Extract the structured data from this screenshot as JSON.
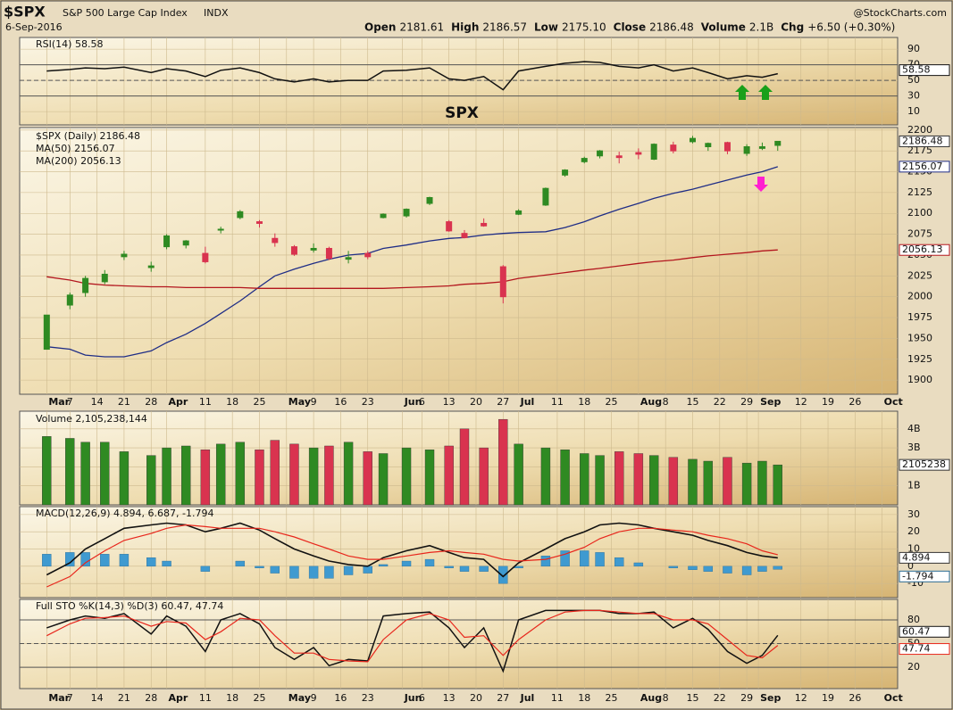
{
  "header": {
    "symbol": "$SPX",
    "name": "S&P 500 Large Cap Index",
    "exchange": "INDX",
    "source": "@StockCharts.com",
    "date": "6-Sep-2016",
    "quote": [
      {
        "label": "Open",
        "value": "2181.61"
      },
      {
        "label": "High",
        "value": "2186.57"
      },
      {
        "label": "Low",
        "value": "2175.10"
      },
      {
        "label": "Close",
        "value": "2186.48"
      },
      {
        "label": "Volume",
        "value": "2.1B"
      },
      {
        "label": "Chg",
        "value": "+6.50 (+0.30%)"
      }
    ]
  },
  "annotation": {
    "text": "SPX",
    "color": "#ff1fd0"
  },
  "chart_data": {
    "type": "stock",
    "x": [
      "2016-03-01",
      "2016-03-07",
      "2016-03-11",
      "2016-03-16",
      "2016-03-21",
      "2016-03-28",
      "2016-04-01",
      "2016-04-06",
      "2016-04-11",
      "2016-04-15",
      "2016-04-20",
      "2016-04-25",
      "2016-04-29",
      "2016-05-04",
      "2016-05-09",
      "2016-05-13",
      "2016-05-18",
      "2016-05-23",
      "2016-05-27",
      "2016-06-02",
      "2016-06-08",
      "2016-06-13",
      "2016-06-17",
      "2016-06-22",
      "2016-06-27",
      "2016-07-01",
      "2016-07-08",
      "2016-07-13",
      "2016-07-18",
      "2016-07-22",
      "2016-07-27",
      "2016-08-01",
      "2016-08-05",
      "2016-08-10",
      "2016-08-15",
      "2016-08-19",
      "2016-08-24",
      "2016-08-29",
      "2016-09-02",
      "2016-09-06"
    ],
    "xlim": [
      "2016-02-23",
      "2016-10-07"
    ],
    "xticks": [
      {
        "value": "2016-03-01",
        "label": "Mar"
      },
      {
        "value": "2016-03-07",
        "label": "7"
      },
      {
        "value": "2016-03-14",
        "label": "14"
      },
      {
        "value": "2016-03-21",
        "label": "21"
      },
      {
        "value": "2016-03-28",
        "label": "28"
      },
      {
        "value": "2016-04-01",
        "label": "Apr"
      },
      {
        "value": "2016-04-11",
        "label": "11"
      },
      {
        "value": "2016-04-18",
        "label": "18"
      },
      {
        "value": "2016-04-25",
        "label": "25"
      },
      {
        "value": "2016-05-02",
        "label": "May"
      },
      {
        "value": "2016-05-09",
        "label": "9"
      },
      {
        "value": "2016-05-16",
        "label": "16"
      },
      {
        "value": "2016-05-23",
        "label": "23"
      },
      {
        "value": "2016-06-01",
        "label": "Jun"
      },
      {
        "value": "2016-06-06",
        "label": "6"
      },
      {
        "value": "2016-06-13",
        "label": "13"
      },
      {
        "value": "2016-06-20",
        "label": "20"
      },
      {
        "value": "2016-06-27",
        "label": "27"
      },
      {
        "value": "2016-07-01",
        "label": "Jul"
      },
      {
        "value": "2016-07-11",
        "label": "11"
      },
      {
        "value": "2016-07-18",
        "label": "18"
      },
      {
        "value": "2016-07-25",
        "label": "25"
      },
      {
        "value": "2016-08-01",
        "label": "Aug"
      },
      {
        "value": "2016-08-08",
        "label": "8"
      },
      {
        "value": "2016-08-15",
        "label": "15"
      },
      {
        "value": "2016-08-22",
        "label": "22"
      },
      {
        "value": "2016-08-29",
        "label": "29"
      },
      {
        "value": "2016-09-01",
        "label": "Sep"
      },
      {
        "value": "2016-09-12",
        "label": "12"
      },
      {
        "value": "2016-09-19",
        "label": "19"
      },
      {
        "value": "2016-09-26",
        "label": "26"
      },
      {
        "value": "2016-10-03",
        "label": "Oct"
      }
    ],
    "up_color": "#2f8a22",
    "down_color": "#d9334f",
    "panels": [
      {
        "type": "line",
        "legend": [
          "RSI(14) 58.58"
        ],
        "ylim": [
          -7,
          105
        ],
        "yticks": [
          10,
          30,
          50,
          70,
          90
        ],
        "levels": [
          70,
          30
        ],
        "midline": 50,
        "series": [
          {
            "name": "RSI(14)",
            "color": "#111111",
            "values": [
              62,
              64,
              66,
              65,
              67,
              60,
              65,
              62,
              55,
              63,
              66,
              60,
              52,
              48,
              52,
              48,
              50,
              50,
              62,
              63,
              66,
              52,
              50,
              55,
              38,
              62,
              68,
              72,
              74,
              73,
              68,
              66,
              70,
              62,
              66,
              60,
              52,
              56,
              54,
              58.58
            ]
          }
        ]
      },
      {
        "type": "candlestick",
        "legend": [
          "$SPX (Daily) 2186.48",
          "MA(50) 2156.07",
          "MA(200) 2056.13"
        ],
        "ylim": [
          1883,
          2203
        ],
        "yticks": [
          1900,
          1925,
          1950,
          1975,
          2000,
          2025,
          2050,
          2075,
          2100,
          2125,
          2150,
          2175,
          2200
        ],
        "open": [
          1937,
          1990,
          2005,
          2018,
          2048,
          2035,
          2060,
          2062,
          2052,
          2080,
          2095,
          2090,
          2070,
          2060,
          2056,
          2058,
          2045,
          2052,
          2095,
          2097,
          2112,
          2090,
          2076,
          2088,
          2036,
          2099,
          2110,
          2146,
          2162,
          2169,
          2169,
          2173,
          2165,
          2182,
          2186,
          2180,
          2185,
          2172,
          2178,
          2181.61
        ],
        "high": [
          1978,
          2005,
          2025,
          2032,
          2055,
          2042,
          2075,
          2068,
          2060,
          2084,
          2104,
          2092,
          2076,
          2062,
          2064,
          2060,
          2055,
          2055,
          2100,
          2106,
          2120,
          2092,
          2080,
          2094,
          2038,
          2105,
          2131,
          2153,
          2168,
          2176,
          2174,
          2178,
          2184,
          2186,
          2193,
          2185,
          2186,
          2183,
          2185,
          2186.57
        ],
        "low": [
          1937,
          1985,
          2000,
          2015,
          2044,
          2030,
          2057,
          2058,
          2040,
          2076,
          2093,
          2083,
          2060,
          2049,
          2053,
          2044,
          2040,
          2045,
          2094,
          2095,
          2110,
          2078,
          2070,
          2084,
          1992,
          2098,
          2109,
          2144,
          2160,
          2166,
          2160,
          2165,
          2164,
          2172,
          2184,
          2175,
          2171,
          2169,
          2176,
          2175.1
        ],
        "close": [
          1978,
          2002,
          2022,
          2027,
          2051,
          2037,
          2073,
          2067,
          2042,
          2081,
          2102,
          2088,
          2065,
          2051,
          2058,
          2046,
          2047,
          2048,
          2099,
          2105,
          2119,
          2079,
          2071,
          2085,
          2000,
          2103,
          2130,
          2152,
          2166,
          2175,
          2167,
          2171,
          2183,
          2175,
          2190,
          2184,
          2175,
          2180,
          2180,
          2186.48
        ],
        "series": [
          {
            "name": "MA(50)",
            "color": "#1f2d86",
            "values": [
              1940,
              1937,
              1930,
              1928,
              1928,
              1935,
              1945,
              1955,
              1968,
              1980,
              1995,
              2012,
              2025,
              2033,
              2040,
              2045,
              2050,
              2052,
              2058,
              2062,
              2067,
              2070,
              2071,
              2074,
              2076,
              2077,
              2078,
              2083,
              2090,
              2097,
              2105,
              2112,
              2118,
              2124,
              2129,
              2134,
              2140,
              2146,
              2150,
              2156.07
            ]
          },
          {
            "name": "MA(200)",
            "color": "#b3161e",
            "values": [
              2024,
              2020,
              2016,
              2014,
              2013,
              2012,
              2012,
              2011,
              2011,
              2011,
              2011,
              2010,
              2010,
              2010,
              2010,
              2010,
              2010,
              2010,
              2010,
              2011,
              2012,
              2013,
              2015,
              2016,
              2018,
              2022,
              2026,
              2029,
              2032,
              2034,
              2037,
              2040,
              2042,
              2044,
              2047,
              2049,
              2051,
              2053,
              2055,
              2056.13
            ]
          }
        ]
      },
      {
        "type": "bar",
        "legend": [
          "Volume 2,105,238,144"
        ],
        "last_label": "2105238",
        "ylim": [
          0,
          4930000000
        ],
        "yticks": [
          {
            "value": 1000000000,
            "label": "1B"
          },
          {
            "value": 2000000000,
            "label": "2B"
          },
          {
            "value": 3000000000,
            "label": "3B"
          },
          {
            "value": 4000000000,
            "label": "4B"
          }
        ],
        "values": [
          3600000000,
          3500000000,
          3300000000,
          3300000000,
          2800000000,
          2600000000,
          3000000000,
          3100000000,
          2900000000,
          3200000000,
          3300000000,
          2900000000,
          3400000000,
          3200000000,
          3000000000,
          3100000000,
          3300000000,
          2800000000,
          2700000000,
          3000000000,
          2900000000,
          3100000000,
          4000000000,
          3000000000,
          4500000000,
          3200000000,
          3000000000,
          2900000000,
          2700000000,
          2600000000,
          2800000000,
          2700000000,
          2600000000,
          2500000000,
          2400000000,
          2300000000,
          2500000000,
          2200000000,
          2300000000,
          2105238144
        ]
      },
      {
        "type": "macd",
        "legend": [
          "MACD(12,26,9) 4.894, 6.687, -1.794"
        ],
        "ylim": [
          -18.2,
          34.6
        ],
        "yticks": [
          -10,
          0,
          10,
          20,
          30
        ],
        "series": [
          {
            "name": "MACD",
            "color": "#111111",
            "values": [
              -5,
              2,
              10,
              16,
              22,
              24,
              25,
              24,
              20,
              22,
              25,
              21,
              16,
              10,
              6,
              3,
              1,
              0,
              5,
              9,
              12,
              8,
              5,
              4,
              -6,
              2,
              10,
              16,
              20,
              24,
              25,
              24,
              22,
              20,
              18,
              15,
              12,
              8,
              6,
              4.894
            ]
          },
          {
            "name": "Signal",
            "color": "#e8261c",
            "values": [
              -12,
              -6,
              2,
              9,
              15,
              19,
              22,
              24,
              23,
              22,
              22,
              22,
              20,
              17,
              13,
              10,
              6,
              4,
              4,
              6,
              8,
              9,
              8,
              7,
              4,
              3,
              4,
              7,
              11,
              16,
              20,
              22,
              22,
              21,
              20,
              18,
              16,
              13,
              9,
              6.687
            ]
          }
        ],
        "histogram": {
          "color": "#3f9ad0",
          "values": [
            7,
            8,
            8,
            7,
            7,
            5,
            3,
            0,
            -3,
            0,
            3,
            -1,
            -4,
            -7,
            -7,
            -7,
            -5,
            -4,
            1,
            3,
            4,
            -1,
            -3,
            -3,
            -10,
            -1,
            6,
            9,
            9,
            8,
            5,
            2,
            0,
            -1,
            -2,
            -3,
            -4,
            -5,
            -3,
            -1.794
          ]
        }
      },
      {
        "type": "line",
        "legend": [
          "Full STO %K(14,3) %D(3) 60.47, 47.74"
        ],
        "ylim": [
          -7,
          106
        ],
        "yticks": [
          20,
          50,
          80
        ],
        "levels": [
          80,
          20
        ],
        "midline": 50,
        "series": [
          {
            "name": "%K",
            "color": "#111111",
            "values": [
              70,
              80,
              85,
              82,
              88,
              62,
              85,
              72,
              40,
              80,
              88,
              75,
              45,
              30,
              45,
              22,
              30,
              28,
              85,
              88,
              90,
              70,
              45,
              70,
              15,
              80,
              92,
              92,
              92,
              92,
              88,
              88,
              90,
              70,
              82,
              68,
              40,
              25,
              35,
              60.47
            ]
          },
          {
            "name": "%D",
            "color": "#e8261c",
            "values": [
              60,
              75,
              82,
              83,
              85,
              72,
              78,
              76,
              55,
              65,
              82,
              80,
              60,
              38,
              38,
              30,
              28,
              27,
              55,
              80,
              88,
              80,
              58,
              60,
              35,
              55,
              80,
              90,
              92,
              92,
              90,
              88,
              88,
              80,
              80,
              75,
              55,
              35,
              32,
              47.74
            ]
          }
        ]
      }
    ]
  }
}
